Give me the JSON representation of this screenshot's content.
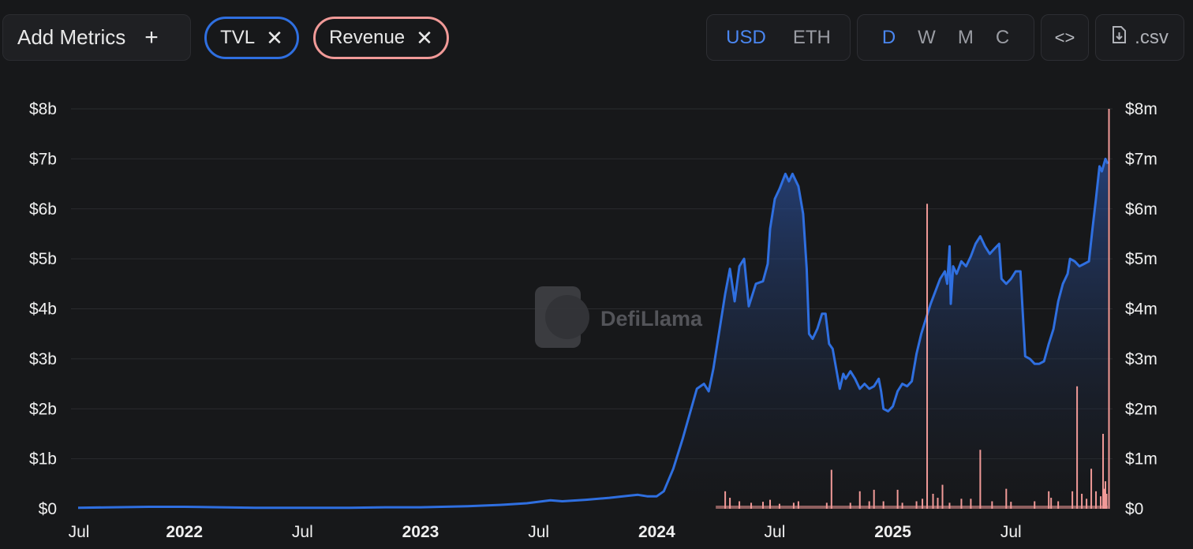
{
  "toolbar": {
    "add_metrics_label": "Add Metrics",
    "add_metrics_icon": "plus-icon",
    "pills": [
      {
        "label": "TVL",
        "color": "#2f6fe0"
      },
      {
        "label": "Revenue",
        "color": "#f19a98"
      }
    ],
    "currency_options": [
      "USD",
      "ETH"
    ],
    "currency_selected": "USD",
    "interval_options": [
      "D",
      "W",
      "M",
      "C"
    ],
    "interval_selected": "D",
    "embed_label": "<>",
    "csv_label": ".csv"
  },
  "watermark": "DefiLlama",
  "chart_data": {
    "type": "area",
    "title": "",
    "series": [
      {
        "name": "TVL",
        "axis": "left",
        "unit": "USD billions",
        "color": "#2f6fe0",
        "points": [
          [
            2021.55,
            0.02
          ],
          [
            2021.7,
            0.03
          ],
          [
            2021.85,
            0.04
          ],
          [
            2022.0,
            0.04
          ],
          [
            2022.15,
            0.03
          ],
          [
            2022.3,
            0.02
          ],
          [
            2022.5,
            0.02
          ],
          [
            2022.7,
            0.02
          ],
          [
            2022.85,
            0.03
          ],
          [
            2023.0,
            0.03
          ],
          [
            2023.2,
            0.05
          ],
          [
            2023.35,
            0.08
          ],
          [
            2023.45,
            0.11
          ],
          [
            2023.5,
            0.14
          ],
          [
            2023.55,
            0.17
          ],
          [
            2023.6,
            0.15
          ],
          [
            2023.7,
            0.18
          ],
          [
            2023.8,
            0.22
          ],
          [
            2023.88,
            0.26
          ],
          [
            2023.92,
            0.28
          ],
          [
            2023.96,
            0.25
          ],
          [
            2024.0,
            0.25
          ],
          [
            2024.03,
            0.35
          ],
          [
            2024.07,
            0.8
          ],
          [
            2024.11,
            1.4
          ],
          [
            2024.14,
            1.9
          ],
          [
            2024.17,
            2.4
          ],
          [
            2024.2,
            2.5
          ],
          [
            2024.22,
            2.35
          ],
          [
            2024.24,
            2.8
          ],
          [
            2024.27,
            3.7
          ],
          [
            2024.29,
            4.3
          ],
          [
            2024.31,
            4.8
          ],
          [
            2024.33,
            4.15
          ],
          [
            2024.35,
            4.85
          ],
          [
            2024.37,
            5.0
          ],
          [
            2024.39,
            4.05
          ],
          [
            2024.42,
            4.5
          ],
          [
            2024.45,
            4.55
          ],
          [
            2024.47,
            4.9
          ],
          [
            2024.48,
            5.6
          ],
          [
            2024.5,
            6.2
          ],
          [
            2024.52,
            6.4
          ],
          [
            2024.545,
            6.7
          ],
          [
            2024.56,
            6.55
          ],
          [
            2024.575,
            6.7
          ],
          [
            2024.6,
            6.45
          ],
          [
            2024.62,
            5.9
          ],
          [
            2024.635,
            4.8
          ],
          [
            2024.645,
            3.5
          ],
          [
            2024.66,
            3.4
          ],
          [
            2024.68,
            3.6
          ],
          [
            2024.7,
            3.9
          ],
          [
            2024.715,
            3.9
          ],
          [
            2024.73,
            3.3
          ],
          [
            2024.745,
            3.2
          ],
          [
            2024.76,
            2.8
          ],
          [
            2024.775,
            2.4
          ],
          [
            2024.79,
            2.7
          ],
          [
            2024.8,
            2.6
          ],
          [
            2024.82,
            2.75
          ],
          [
            2024.84,
            2.6
          ],
          [
            2024.86,
            2.4
          ],
          [
            2024.88,
            2.5
          ],
          [
            2024.9,
            2.4
          ],
          [
            2024.92,
            2.45
          ],
          [
            2024.94,
            2.6
          ],
          [
            2024.95,
            2.35
          ],
          [
            2024.96,
            2.0
          ],
          [
            2024.98,
            1.95
          ],
          [
            2025.0,
            2.05
          ],
          [
            2025.02,
            2.35
          ],
          [
            2025.04,
            2.5
          ],
          [
            2025.06,
            2.45
          ],
          [
            2025.08,
            2.55
          ],
          [
            2025.1,
            3.1
          ],
          [
            2025.12,
            3.5
          ],
          [
            2025.14,
            3.8
          ],
          [
            2025.16,
            4.1
          ],
          [
            2025.18,
            4.35
          ],
          [
            2025.2,
            4.6
          ],
          [
            2025.22,
            4.75
          ],
          [
            2025.23,
            4.5
          ],
          [
            2025.24,
            5.25
          ],
          [
            2025.245,
            4.1
          ],
          [
            2025.255,
            4.85
          ],
          [
            2025.27,
            4.7
          ],
          [
            2025.29,
            4.95
          ],
          [
            2025.31,
            4.85
          ],
          [
            2025.33,
            5.05
          ],
          [
            2025.35,
            5.3
          ],
          [
            2025.37,
            5.45
          ],
          [
            2025.39,
            5.25
          ],
          [
            2025.41,
            5.1
          ],
          [
            2025.43,
            5.2
          ],
          [
            2025.45,
            5.3
          ],
          [
            2025.46,
            4.6
          ],
          [
            2025.48,
            4.5
          ],
          [
            2025.5,
            4.6
          ],
          [
            2025.52,
            4.75
          ],
          [
            2025.54,
            4.75
          ],
          [
            2025.55,
            3.9
          ],
          [
            2025.56,
            3.05
          ],
          [
            2025.58,
            3.0
          ],
          [
            2025.6,
            2.9
          ],
          [
            2025.62,
            2.9
          ],
          [
            2025.64,
            2.95
          ],
          [
            2025.66,
            3.3
          ],
          [
            2025.68,
            3.6
          ],
          [
            2025.7,
            4.15
          ],
          [
            2025.72,
            4.5
          ],
          [
            2025.74,
            4.7
          ],
          [
            2025.75,
            5.0
          ],
          [
            2025.77,
            4.95
          ],
          [
            2025.79,
            4.85
          ],
          [
            2025.81,
            4.9
          ],
          [
            2025.83,
            4.95
          ],
          [
            2025.845,
            5.6
          ],
          [
            2025.86,
            6.2
          ],
          [
            2025.875,
            6.85
          ],
          [
            2025.885,
            6.75
          ],
          [
            2025.9,
            7.0
          ],
          [
            2025.91,
            6.9
          ]
        ]
      },
      {
        "name": "Revenue",
        "axis": "right",
        "unit": "USD millions",
        "color": "#f19a98",
        "baseline_from": 2024.25,
        "points": [
          [
            2024.29,
            0.35
          ],
          [
            2024.31,
            0.22
          ],
          [
            2024.35,
            0.15
          ],
          [
            2024.4,
            0.12
          ],
          [
            2024.45,
            0.14
          ],
          [
            2024.48,
            0.18
          ],
          [
            2024.52,
            0.1
          ],
          [
            2024.58,
            0.12
          ],
          [
            2024.6,
            0.15
          ],
          [
            2024.72,
            0.12
          ],
          [
            2024.74,
            0.78
          ],
          [
            2024.82,
            0.12
          ],
          [
            2024.86,
            0.35
          ],
          [
            2024.9,
            0.15
          ],
          [
            2024.92,
            0.38
          ],
          [
            2024.96,
            0.15
          ],
          [
            2025.02,
            0.38
          ],
          [
            2025.04,
            0.12
          ],
          [
            2025.1,
            0.15
          ],
          [
            2025.125,
            0.2
          ],
          [
            2025.145,
            6.1
          ],
          [
            2025.17,
            0.3
          ],
          [
            2025.19,
            0.22
          ],
          [
            2025.21,
            0.48
          ],
          [
            2025.24,
            0.12
          ],
          [
            2025.29,
            0.2
          ],
          [
            2025.33,
            0.2
          ],
          [
            2025.37,
            1.18
          ],
          [
            2025.42,
            0.15
          ],
          [
            2025.48,
            0.4
          ],
          [
            2025.5,
            0.14
          ],
          [
            2025.6,
            0.15
          ],
          [
            2025.66,
            0.35
          ],
          [
            2025.67,
            0.22
          ],
          [
            2025.7,
            0.15
          ],
          [
            2025.76,
            0.35
          ],
          [
            2025.78,
            2.45
          ],
          [
            2025.8,
            0.3
          ],
          [
            2025.82,
            0.2
          ],
          [
            2025.84,
            0.8
          ],
          [
            2025.86,
            0.35
          ],
          [
            2025.88,
            0.25
          ],
          [
            2025.89,
            1.5
          ],
          [
            2025.895,
            0.4
          ],
          [
            2025.9,
            0.55
          ],
          [
            2025.905,
            0.3
          ],
          [
            2025.915,
            8.0
          ]
        ]
      }
    ],
    "x_ticks": [
      {
        "label": "Jul",
        "x": 2021.5,
        "bold": false
      },
      {
        "label": "2022",
        "x": 2022.0,
        "bold": true
      },
      {
        "label": "Jul",
        "x": 2022.5,
        "bold": false
      },
      {
        "label": "2023",
        "x": 2023.0,
        "bold": true
      },
      {
        "label": "Jul",
        "x": 2023.5,
        "bold": false
      },
      {
        "label": "2024",
        "x": 2024.0,
        "bold": true
      },
      {
        "label": "Jul",
        "x": 2024.5,
        "bold": false
      },
      {
        "label": "2025",
        "x": 2025.0,
        "bold": true
      },
      {
        "label": "Jul",
        "x": 2025.5,
        "bold": false
      }
    ],
    "y_left": {
      "ticks": [
        "$0",
        "$1b",
        "$2b",
        "$3b",
        "$4b",
        "$5b",
        "$6b",
        "$7b",
        "$8b"
      ],
      "min": 0,
      "max": 8
    },
    "y_right": {
      "ticks": [
        "$0",
        "$1m",
        "$2m",
        "$3m",
        "$4m",
        "$5m",
        "$6m",
        "$7m",
        "$8m"
      ],
      "min": 0,
      "max": 8
    },
    "xlim": [
      2021.52,
      2025.93
    ],
    "grid": true,
    "legend": "top-left pills"
  }
}
